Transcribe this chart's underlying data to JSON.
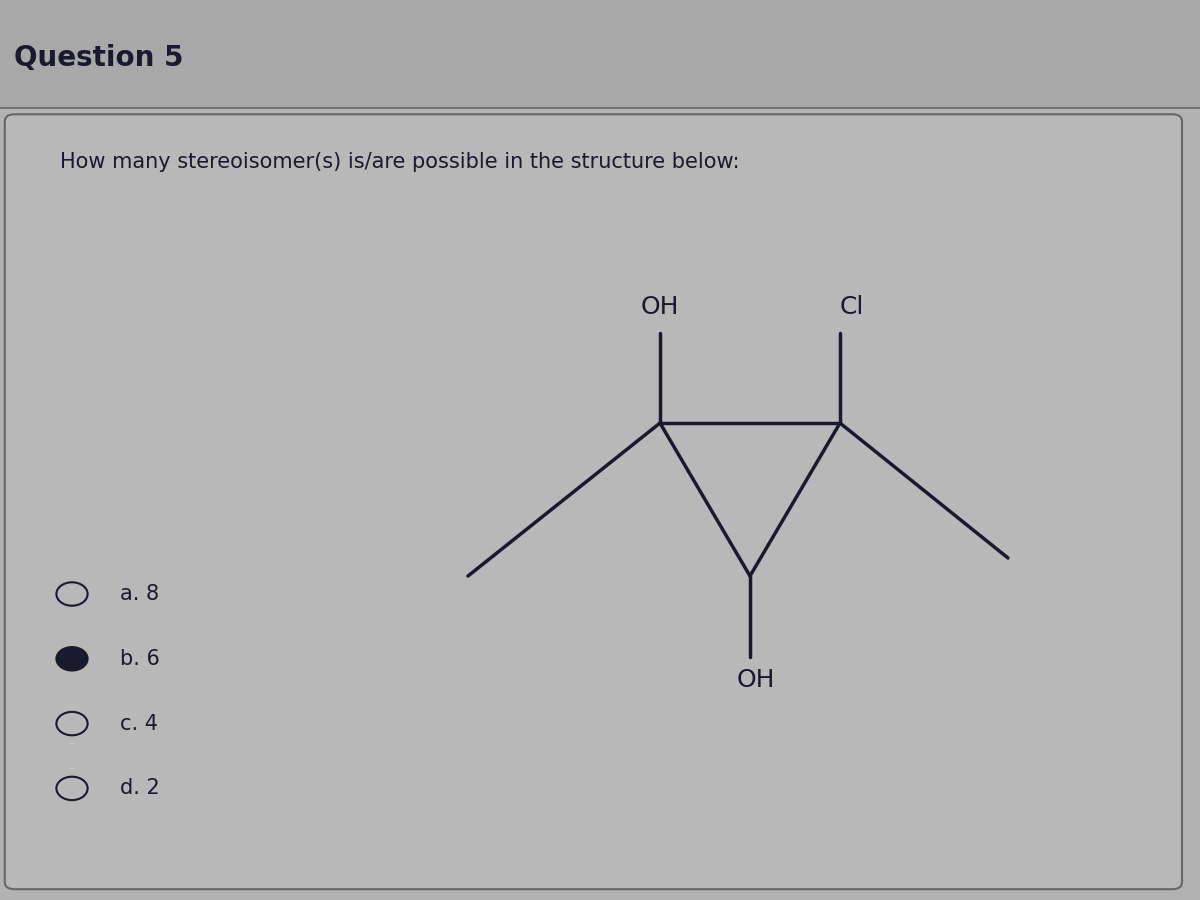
{
  "title": "Question 5",
  "question_text": "How many stereoisomer(s) is/are possible in the structure below:",
  "background_color": "#b2b2b2",
  "header_color": "#a8a8a8",
  "inner_bg_color": "#b8b8b8",
  "border_color": "#666666",
  "text_color": "#1a1a2e",
  "mol_color": "#1a1a2e",
  "options": [
    {
      "label": "a. 8",
      "selected": false
    },
    {
      "label": "b. 6",
      "selected": true
    },
    {
      "label": "c. 4",
      "selected": false
    },
    {
      "label": "d. 2",
      "selected": false
    }
  ]
}
